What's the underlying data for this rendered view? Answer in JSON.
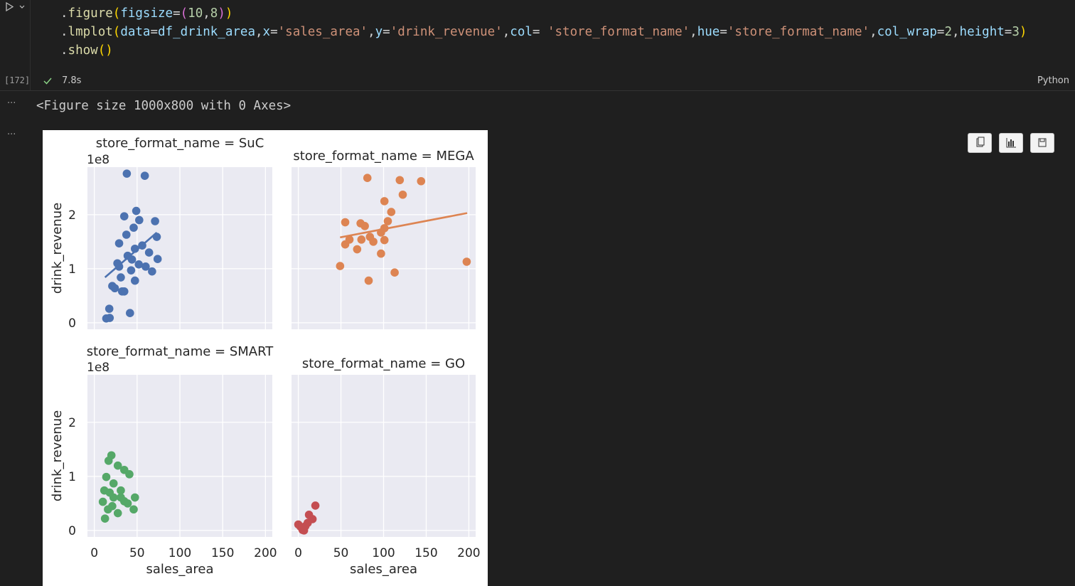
{
  "cell": {
    "execution_count": "[172]",
    "duration": "7.8s",
    "language": "Python",
    "code": [
      {
        "tokens": [
          {
            "text": ".",
            "color": "#d4d4d4"
          },
          {
            "text": "figure",
            "color": "#dcdcaa"
          },
          {
            "text": "(",
            "color": "#ffd700"
          },
          {
            "text": "figsize",
            "color": "#9cdcfe"
          },
          {
            "text": "=",
            "color": "#d4d4d4"
          },
          {
            "text": "(",
            "color": "#da70d6"
          },
          {
            "text": "10",
            "color": "#b5cea8"
          },
          {
            "text": ",",
            "color": "#d4d4d4"
          },
          {
            "text": "8",
            "color": "#b5cea8"
          },
          {
            "text": ")",
            "color": "#da70d6"
          },
          {
            "text": ")",
            "color": "#ffd700"
          }
        ]
      },
      {
        "tokens": [
          {
            "text": ".",
            "color": "#d4d4d4"
          },
          {
            "text": "lmplot",
            "color": "#dcdcaa"
          },
          {
            "text": "(",
            "color": "#ffd700"
          },
          {
            "text": "data",
            "color": "#9cdcfe"
          },
          {
            "text": "=",
            "color": "#d4d4d4"
          },
          {
            "text": "df_drink_area",
            "color": "#9cdcfe"
          },
          {
            "text": ",",
            "color": "#d4d4d4"
          },
          {
            "text": "x",
            "color": "#9cdcfe"
          },
          {
            "text": "=",
            "color": "#d4d4d4"
          },
          {
            "text": "'sales_area'",
            "color": "#ce9178"
          },
          {
            "text": ",",
            "color": "#d4d4d4"
          },
          {
            "text": "y",
            "color": "#9cdcfe"
          },
          {
            "text": "=",
            "color": "#d4d4d4"
          },
          {
            "text": "'drink_revenue'",
            "color": "#ce9178"
          },
          {
            "text": ",",
            "color": "#d4d4d4"
          },
          {
            "text": "col",
            "color": "#9cdcfe"
          },
          {
            "text": "= ",
            "color": "#d4d4d4"
          },
          {
            "text": "'store_format_name'",
            "color": "#ce9178"
          },
          {
            "text": ",",
            "color": "#d4d4d4"
          },
          {
            "text": "hue",
            "color": "#9cdcfe"
          },
          {
            "text": "=",
            "color": "#d4d4d4"
          },
          {
            "text": "'store_format_name'",
            "color": "#ce9178"
          },
          {
            "text": ",",
            "color": "#d4d4d4"
          },
          {
            "text": "col_wrap",
            "color": "#9cdcfe"
          },
          {
            "text": "=",
            "color": "#d4d4d4"
          },
          {
            "text": "2",
            "color": "#b5cea8"
          },
          {
            "text": ",",
            "color": "#d4d4d4"
          },
          {
            "text": "height",
            "color": "#9cdcfe"
          },
          {
            "text": "=",
            "color": "#d4d4d4"
          },
          {
            "text": "3",
            "color": "#b5cea8"
          },
          {
            "text": ")",
            "color": "#ffd700"
          }
        ]
      },
      {
        "tokens": [
          {
            "text": ".",
            "color": "#d4d4d4"
          },
          {
            "text": "show",
            "color": "#dcdcaa"
          },
          {
            "text": "()",
            "color": "#ffd700"
          }
        ]
      }
    ],
    "output_text": "<Figure size 1000x800 with 0 Axes>",
    "output_markers": [
      "...",
      "..."
    ]
  },
  "chart_data": [
    {
      "type": "scatter",
      "title": "store_format_name = SuC",
      "offset_text": "1e8",
      "ylabel": "drink_revenue",
      "color": "#4c72b0",
      "x": [
        38,
        59,
        49,
        35,
        71,
        52.5,
        73,
        74,
        67.5,
        41.7,
        17.5,
        14,
        18,
        21,
        29,
        39,
        47.5,
        56,
        31,
        24,
        35,
        43,
        52,
        60,
        37.5,
        46,
        27,
        64,
        32.5,
        47.5,
        29,
        44
      ],
      "values": [
        2.76,
        2.72,
        2.07,
        1.97,
        1.88,
        1.9,
        1.59,
        1.18,
        0.95,
        0.18,
        0.26,
        0.08,
        0.09,
        0.68,
        1.47,
        1.24,
        1.37,
        1.43,
        0.84,
        0.64,
        0.58,
        0.97,
        1.08,
        1.04,
        1.63,
        1.76,
        1.1,
        1.3,
        0.58,
        0.78,
        1.04,
        1.17
      ],
      "trend": {
        "x": [
          12.5,
          73
        ],
        "values": [
          0.84,
          1.67
        ]
      },
      "xlim": [
        -8,
        208
      ],
      "ylim": [
        -0.12,
        2.88
      ],
      "xticks": [
        0,
        50,
        100,
        150,
        200
      ],
      "yticks": [
        0,
        1,
        2
      ],
      "grid": true
    },
    {
      "type": "scatter",
      "title": "store_format_name = MEGA",
      "color": "#dd8452",
      "x": [
        81,
        119,
        144,
        122.5,
        101,
        109,
        105,
        55,
        73,
        78,
        101,
        97,
        60,
        74,
        84,
        88,
        101,
        55,
        69,
        97,
        197.5,
        49,
        113,
        82.5
      ],
      "values": [
        2.68,
        2.64,
        2.62,
        2.37,
        2.25,
        2.05,
        1.88,
        1.86,
        1.84,
        1.79,
        1.75,
        1.67,
        1.54,
        1.54,
        1.59,
        1.5,
        1.53,
        1.45,
        1.36,
        1.28,
        1.13,
        1.05,
        0.93,
        0.78
      ],
      "trend": {
        "x": [
          49,
          198
        ],
        "values": [
          1.58,
          2.03
        ]
      },
      "xlim": [
        -8,
        208
      ],
      "ylim": [
        -0.12,
        2.88
      ],
      "xticks": [
        0,
        50,
        100,
        150,
        200
      ],
      "yticks": [
        0,
        1,
        2
      ],
      "grid": true
    },
    {
      "type": "scatter",
      "title": "store_format_name = SMART",
      "offset_text": "1e8",
      "ylabel": "drink_revenue",
      "xlabel": "sales_area",
      "color": "#55a868",
      "x": [
        20,
        16.7,
        27.5,
        35,
        14,
        41,
        22.5,
        11.7,
        31,
        47.5,
        10,
        22.5,
        35,
        16,
        46,
        27.5,
        12.5,
        39,
        21,
        31,
        18
      ],
      "values": [
        1.39,
        1.29,
        1.2,
        1.12,
        0.99,
        1.04,
        0.87,
        0.74,
        0.74,
        0.61,
        0.53,
        0.61,
        0.54,
        0.39,
        0.39,
        0.32,
        0.22,
        0.5,
        0.45,
        0.61,
        0.7
      ],
      "xlim": [
        -8,
        208
      ],
      "ylim": [
        -0.12,
        2.88
      ],
      "xticks": [
        0,
        50,
        100,
        150,
        200
      ],
      "yticks": [
        0,
        1,
        2
      ],
      "grid": true
    },
    {
      "type": "scatter",
      "title": "store_format_name = GO",
      "xlabel": "sales_area",
      "color": "#c44e52",
      "x": [
        20,
        12.5,
        16.7,
        0,
        5,
        8.3,
        2.5,
        11,
        6.7
      ],
      "values": [
        0.46,
        0.29,
        0.21,
        0.11,
        0.01,
        0.08,
        0.07,
        0.14,
        0.0
      ],
      "xlim": [
        -8,
        208
      ],
      "ylim": [
        -0.12,
        2.88
      ],
      "xticks": [
        0,
        50,
        100,
        150,
        200
      ],
      "yticks": [
        0,
        1,
        2
      ],
      "grid": true
    }
  ]
}
